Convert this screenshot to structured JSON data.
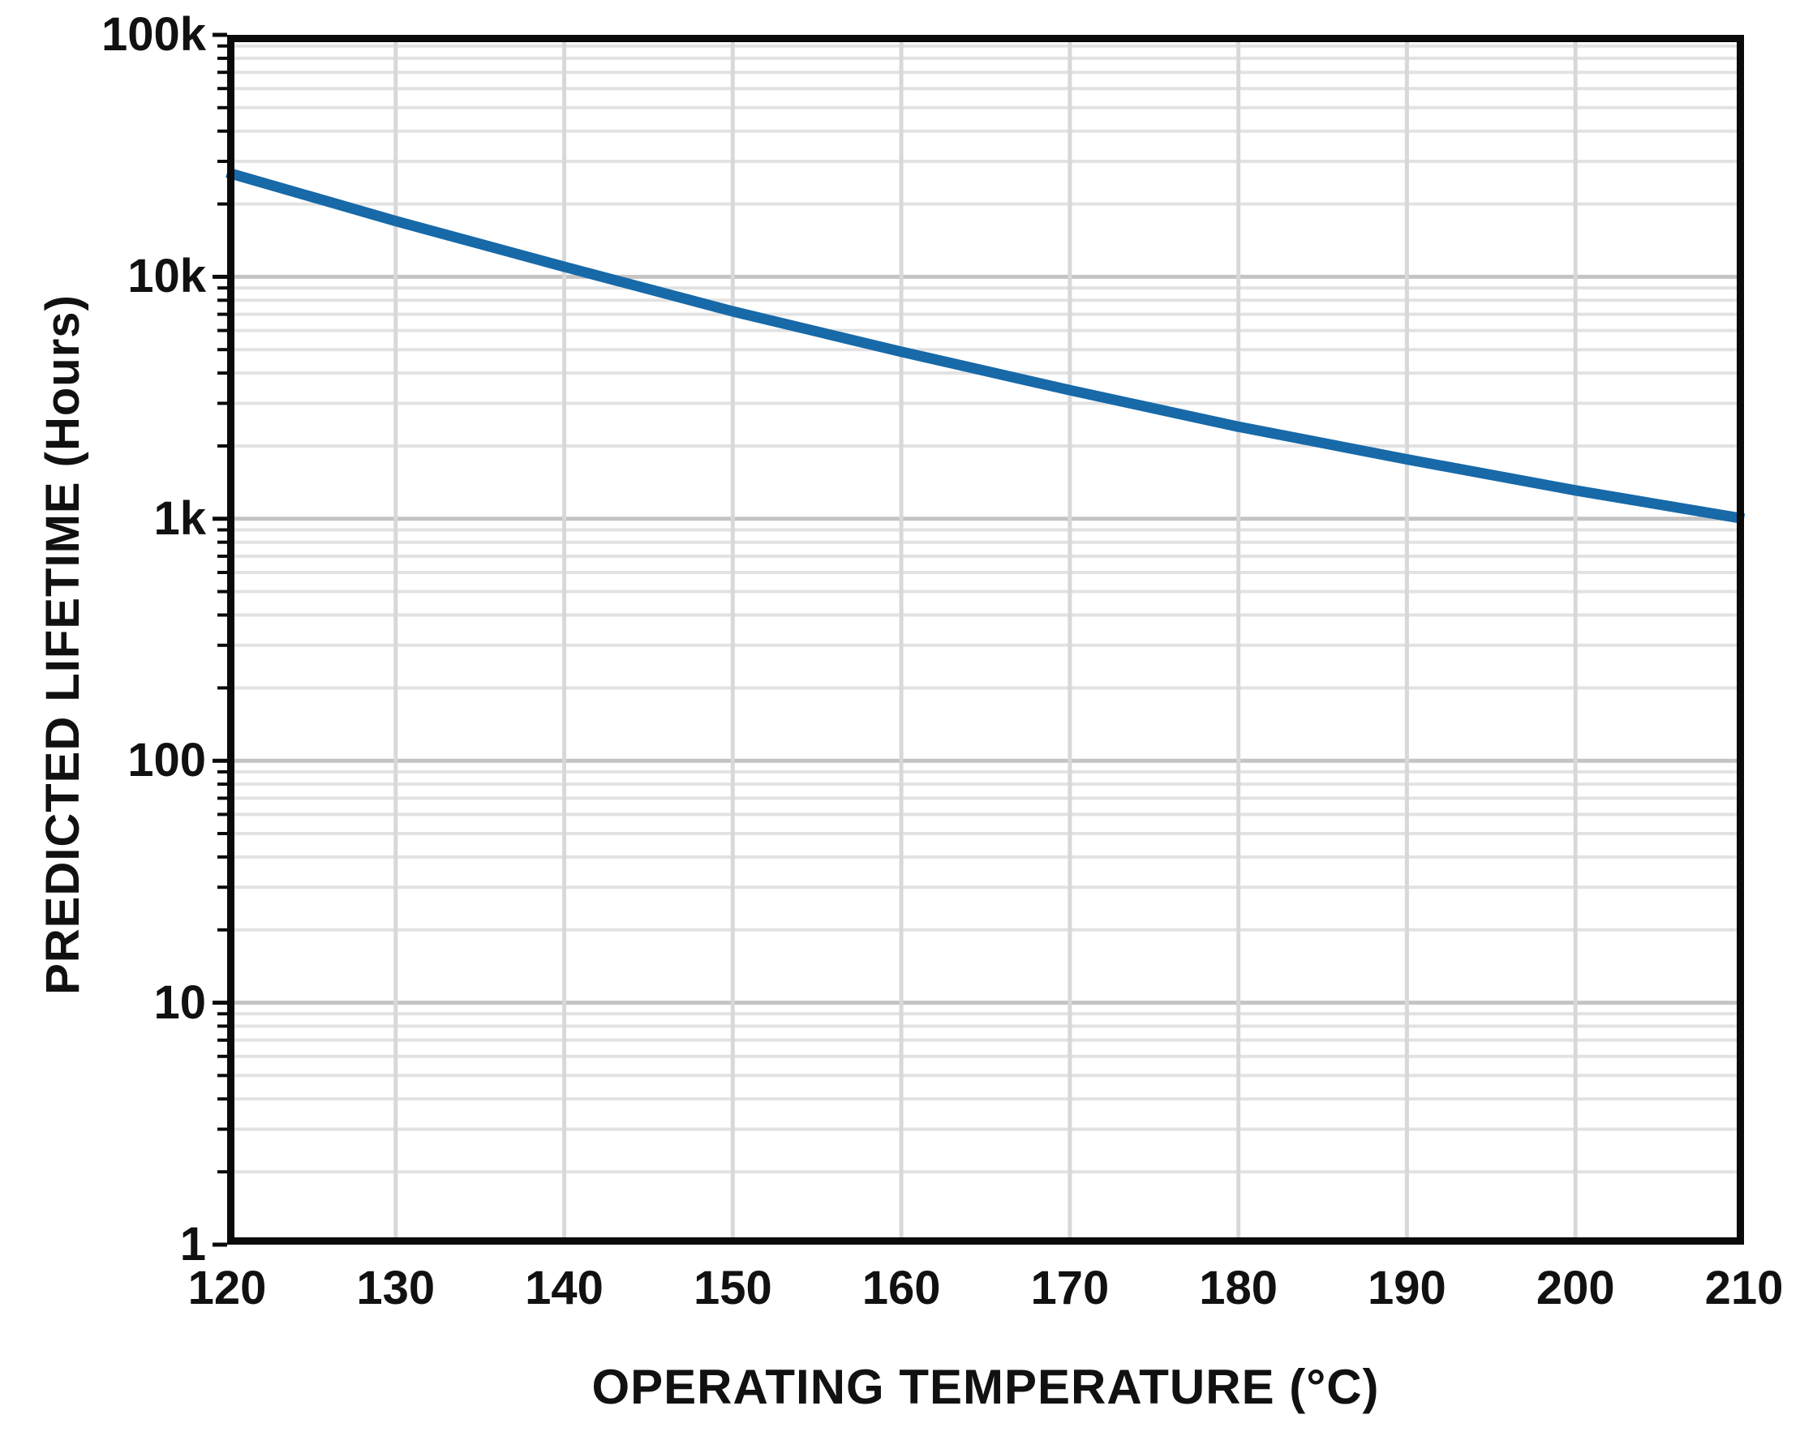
{
  "chart_data": {
    "type": "line",
    "title": "",
    "xlabel": "OPERATING TEMPERATURE (°C)",
    "ylabel": "PREDICTED LIFETIME (Hours)",
    "x_scale": "linear",
    "y_scale": "log",
    "xlim": [
      120,
      210
    ],
    "ylim": [
      1,
      100000
    ],
    "x_ticks": [
      120,
      130,
      140,
      150,
      160,
      170,
      180,
      190,
      200,
      210
    ],
    "y_ticks": [
      {
        "value": 100000,
        "label": "100k"
      },
      {
        "value": 10000,
        "label": "10k"
      },
      {
        "value": 1000,
        "label": "1k"
      },
      {
        "value": 100,
        "label": "100"
      },
      {
        "value": 10,
        "label": "10"
      },
      {
        "value": 1,
        "label": "1"
      }
    ],
    "grid": {
      "horizontal_major": true,
      "horizontal_minor_log": true,
      "vertical_major": true
    },
    "legend": "none",
    "series": [
      {
        "name": "predicted-lifetime",
        "x": [
          120,
          130,
          140,
          150,
          160,
          170,
          180,
          190,
          200,
          210
        ],
        "values": [
          27000,
          17000,
          11000,
          7200,
          4900,
          3400,
          2400,
          1760,
          1310,
          1000
        ]
      }
    ]
  },
  "colors": {
    "line": "#1769a8",
    "grid_major": "#c4c4c4",
    "grid_minor": "#e2e2e2",
    "grid_vertical": "#d8d8d8",
    "frame": "#0a0a0a",
    "text": "#111111",
    "background": "#ffffff"
  }
}
